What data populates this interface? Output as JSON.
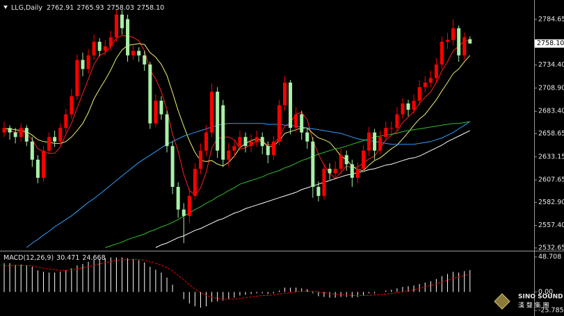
{
  "chart_data": [
    {
      "type": "candlestick",
      "title": "LLG,Daily",
      "open": [
        2660,
        2665,
        2660,
        2655,
        2665,
        2650,
        2630,
        2610,
        2640,
        2655,
        2650,
        2665,
        2680,
        2700,
        2740,
        2730,
        2745,
        2760,
        2750,
        2755,
        2765,
        2790,
        2785,
        2745,
        2750,
        2745,
        2735,
        2670,
        2695,
        2680,
        2645,
        2600,
        2575,
        2568,
        2590,
        2620,
        2640,
        2660,
        2705,
        2690,
        2630,
        2640,
        2645,
        2655,
        2645,
        2650,
        2655,
        2645,
        2635,
        2650,
        2690,
        2715,
        2665,
        2680,
        2660,
        2650,
        2600,
        2590,
        2620,
        2615,
        2620,
        2635,
        2625,
        2610,
        2620,
        2640,
        2660,
        2640,
        2655,
        2665,
        2665,
        2680,
        2692,
        2685,
        2695,
        2710,
        2715,
        2720,
        2735,
        2760,
        2762,
        2775,
        2745,
        2762.91
      ],
      "high": [
        2672,
        2668,
        2665,
        2670,
        2668,
        2655,
        2635,
        2645,
        2660,
        2662,
        2670,
        2686,
        2708,
        2746,
        2748,
        2752,
        2768,
        2764,
        2762,
        2772,
        2796,
        2795,
        2790,
        2756,
        2754,
        2750,
        2738,
        2702,
        2700,
        2684,
        2650,
        2605,
        2582,
        2598,
        2626,
        2648,
        2668,
        2714,
        2710,
        2696,
        2648,
        2652,
        2662,
        2660,
        2658,
        2662,
        2660,
        2650,
        2656,
        2696,
        2722,
        2718,
        2688,
        2684,
        2665,
        2655,
        2606,
        2626,
        2626,
        2628,
        2642,
        2640,
        2630,
        2627,
        2646,
        2666,
        2664,
        2662,
        2672,
        2672,
        2688,
        2698,
        2696,
        2702,
        2718,
        2722,
        2728,
        2742,
        2766,
        2770,
        2785,
        2778,
        2770,
        2765.93
      ],
      "low": [
        2655,
        2652,
        2648,
        2650,
        2645,
        2622,
        2604,
        2606,
        2636,
        2644,
        2646,
        2660,
        2675,
        2696,
        2722,
        2725,
        2740,
        2744,
        2745,
        2750,
        2760,
        2768,
        2738,
        2740,
        2738,
        2728,
        2664,
        2666,
        2674,
        2638,
        2592,
        2566,
        2538,
        2560,
        2586,
        2614,
        2634,
        2655,
        2632,
        2622,
        2622,
        2632,
        2640,
        2638,
        2638,
        2644,
        2636,
        2626,
        2630,
        2646,
        2684,
        2658,
        2660,
        2652,
        2642,
        2588,
        2584,
        2586,
        2608,
        2610,
        2614,
        2618,
        2600,
        2604,
        2616,
        2634,
        2630,
        2636,
        2650,
        2658,
        2660,
        2675,
        2678,
        2680,
        2690,
        2704,
        2710,
        2715,
        2730,
        2752,
        2756,
        2738,
        2740,
        2758.03
      ],
      "close": [
        2665,
        2660,
        2655,
        2665,
        2650,
        2630,
        2610,
        2640,
        2655,
        2650,
        2665,
        2680,
        2700,
        2740,
        2730,
        2745,
        2760,
        2750,
        2755,
        2765,
        2790,
        2775,
        2745,
        2750,
        2745,
        2735,
        2670,
        2695,
        2680,
        2645,
        2600,
        2575,
        2568,
        2590,
        2620,
        2640,
        2660,
        2705,
        2640,
        2630,
        2640,
        2645,
        2655,
        2645,
        2650,
        2655,
        2645,
        2635,
        2650,
        2690,
        2715,
        2665,
        2680,
        2660,
        2650,
        2600,
        2590,
        2620,
        2615,
        2620,
        2635,
        2625,
        2610,
        2620,
        2640,
        2660,
        2640,
        2655,
        2665,
        2665,
        2680,
        2692,
        2685,
        2695,
        2710,
        2715,
        2720,
        2735,
        2760,
        2762,
        2775,
        2745,
        2765,
        2758.1
      ],
      "last_close_label": "2758.10",
      "up_color": "#ff0000",
      "down_color": "#a8f0a8",
      "series": [
        {
          "color": "#ff2020",
          "values": [
            2662,
            2662,
            2660,
            2661,
            2659,
            2652,
            2642,
            2639,
            2637,
            2637,
            2644,
            2658,
            2670,
            2687,
            2703,
            2719,
            2735,
            2745,
            2748,
            2755,
            2764,
            2767,
            2766,
            2765,
            2761,
            2750,
            2729,
            2719,
            2705,
            2685,
            2658,
            2639,
            2614,
            2596,
            2591,
            2599,
            2616,
            2643,
            2653,
            2655,
            2655,
            2652,
            2642,
            2643,
            2647,
            2650,
            2650,
            2646,
            2647,
            2655,
            2667,
            2671,
            2680,
            2682,
            2674,
            2651,
            2636,
            2624,
            2615,
            2609,
            2616,
            2623,
            2621,
            2622,
            2626,
            2631,
            2634,
            2643,
            2652,
            2657,
            2661,
            2671,
            2677,
            2683,
            2692,
            2699,
            2705,
            2715,
            2728,
            2738,
            2750,
            2755,
            2761,
            2761
          ]
        },
        {
          "color": "#f0f070",
          "values": [
            2664,
            2664,
            2663,
            2662,
            2661,
            2657,
            2652,
            2650,
            2649,
            2648,
            2648,
            2650,
            2655,
            2662,
            2670,
            2682,
            2697,
            2708,
            2718,
            2729,
            2742,
            2751,
            2756,
            2757,
            2758,
            2757,
            2748,
            2743,
            2735,
            2723,
            2704,
            2684,
            2667,
            2651,
            2638,
            2629,
            2628,
            2629,
            2625,
            2623,
            2627,
            2634,
            2643,
            2648,
            2651,
            2653,
            2651,
            2644,
            2645,
            2651,
            2659,
            2661,
            2663,
            2665,
            2665,
            2659,
            2654,
            2652,
            2649,
            2642,
            2634,
            2630,
            2623,
            2619,
            2618,
            2624,
            2629,
            2632,
            2637,
            2642,
            2646,
            2653,
            2660,
            2668,
            2675,
            2680,
            2688,
            2696,
            2706,
            2715,
            2725,
            2730,
            2738,
            2745
          ]
        },
        {
          "color": "#2f9fff",
          "values": [
            null,
            null,
            null,
            null,
            2533,
            2538,
            2542,
            2547,
            2551,
            2556,
            2560,
            2564,
            2568,
            2573,
            2578,
            2583,
            2587,
            2592,
            2597,
            2602,
            2607,
            2612,
            2617,
            2622,
            2627,
            2631,
            2635,
            2639,
            2643,
            2647,
            2650,
            2653,
            2656,
            2658,
            2660,
            2662,
            2664,
            2666,
            2668,
            2669,
            2670,
            2670,
            2670,
            2670,
            2670,
            2670,
            2670,
            2669,
            2669,
            2669,
            2668,
            2668,
            2667,
            2666,
            2665,
            2664,
            2663,
            2662,
            2661,
            2660,
            2659,
            2657,
            2655,
            2653,
            2652,
            2651,
            2650,
            2649,
            2648,
            2647,
            2647,
            2647,
            2647,
            2647,
            2648,
            2649,
            2650,
            2652,
            2654,
            2657,
            2660,
            2664,
            2668,
            2672
          ]
        },
        {
          "color": "#30c030",
          "values": [
            null,
            null,
            null,
            null,
            null,
            null,
            null,
            null,
            null,
            null,
            null,
            null,
            null,
            null,
            null,
            null,
            null,
            null,
            2533,
            2535,
            2537,
            2539,
            2542,
            2544,
            2546,
            2548,
            2551,
            2553,
            2556,
            2558,
            2561,
            2564,
            2568,
            2571,
            2575,
            2578,
            2582,
            2585,
            2589,
            2592,
            2596,
            2599,
            2603,
            2605,
            2607,
            2609,
            2611,
            2614,
            2616,
            2618,
            2621,
            2623,
            2626,
            2629,
            2631,
            2634,
            2636,
            2638,
            2640,
            2642,
            2643,
            2645,
            2647,
            2649,
            2651,
            2653,
            2655,
            2656,
            2657,
            2658,
            2659,
            2661,
            2662,
            2663,
            2664,
            2665,
            2666,
            2667,
            2668,
            2669,
            2670,
            2670,
            2671,
            2672
          ]
        },
        {
          "color": "#ffffff",
          "values": [
            null,
            null,
            null,
            null,
            null,
            null,
            null,
            null,
            null,
            null,
            null,
            null,
            null,
            null,
            null,
            null,
            null,
            null,
            null,
            null,
            null,
            null,
            null,
            null,
            null,
            null,
            null,
            2533,
            2536,
            2538,
            2541,
            2544,
            2546,
            2549,
            2552,
            2554,
            2557,
            2560,
            2563,
            2565,
            2568,
            2571,
            2573,
            2576,
            2578,
            2580,
            2582,
            2584,
            2586,
            2588,
            2590,
            2592,
            2594,
            2597,
            2599,
            2601,
            2603,
            2605,
            2607,
            2609,
            2611,
            2613,
            2614,
            2616,
            2617,
            2619,
            2620,
            2622,
            2624,
            2625,
            2627,
            2629,
            2631,
            2632,
            2634,
            2637,
            2640,
            2643,
            2646,
            2650,
            2653,
            2656,
            2659,
            2662
          ]
        }
      ],
      "ylim": [
        2532.65,
        2784.65
      ],
      "yticks": [
        {
          "value": 2784.65,
          "label": "2784.65"
        },
        {
          "value": 2734.4,
          "label": "2734.40"
        },
        {
          "value": 2708.9,
          "label": "2708.90"
        },
        {
          "value": 2683.4,
          "label": "2683.40"
        },
        {
          "value": 2658.65,
          "label": "2658.65"
        },
        {
          "value": 2633.15,
          "label": "2633.15"
        },
        {
          "value": 2607.65,
          "label": "2607.65"
        },
        {
          "value": 2582.9,
          "label": "2582.90"
        },
        {
          "value": 2557.4,
          "label": "2557.40"
        },
        {
          "value": 2532.65,
          "label": "2532.65"
        }
      ]
    },
    {
      "type": "macd",
      "title": "MACD(12,26,9)",
      "series": [
        {
          "color": "#ffffff",
          "style": "histogram",
          "values": [
            40,
            40,
            38,
            38,
            37,
            35,
            30,
            28,
            27,
            27,
            28,
            30,
            33,
            37,
            39,
            42,
            45,
            46,
            47,
            48,
            48,
            48,
            47,
            46,
            44,
            41,
            35,
            31,
            27,
            20,
            10,
            0,
            -10,
            -16,
            -20,
            -22,
            -20,
            -14,
            -13,
            -12,
            -10,
            -8,
            -5,
            -4,
            -3,
            -2,
            -2,
            -3,
            -2,
            2,
            6,
            6,
            6,
            5,
            4,
            -2,
            -6,
            -7,
            -8,
            -8,
            -7,
            -7,
            -8,
            -7,
            -5,
            -2,
            -2,
            0,
            2,
            3,
            5,
            7,
            8,
            9,
            11,
            13,
            15,
            18,
            22,
            25,
            28,
            27,
            29,
            30.471
          ]
        },
        {
          "color": "#ff0000",
          "style": "dashed",
          "values": [
            36,
            37,
            37,
            37,
            37,
            36,
            35,
            33,
            32,
            31,
            30,
            30,
            31,
            32,
            34,
            35,
            37,
            39,
            41,
            42,
            44,
            45,
            45,
            45,
            45,
            44,
            42,
            40,
            37,
            34,
            29,
            23,
            17,
            10,
            4,
            -1,
            -5,
            -7,
            -9,
            -10,
            -10,
            -10,
            -9,
            -8,
            -7,
            -6,
            -5,
            -5,
            -4,
            -3,
            -2,
            -1,
            0,
            1,
            1,
            1,
            0,
            -1,
            -2,
            -3,
            -4,
            -4,
            -5,
            -5,
            -5,
            -5,
            -4,
            -4,
            -3,
            -2,
            -1,
            0,
            1,
            3,
            5,
            7,
            9,
            11,
            14,
            16,
            19,
            21,
            23,
            24.668
          ]
        }
      ],
      "ylim": [
        -25.785,
        48.708
      ],
      "yticks": [
        48.708,
        {
          "value": 0,
          "label": "0.00"
        },
        -25.785
      ]
    }
  ],
  "logo": {
    "name": "SINO SOUND",
    "subtitle": "漢 聲 集 團"
  }
}
